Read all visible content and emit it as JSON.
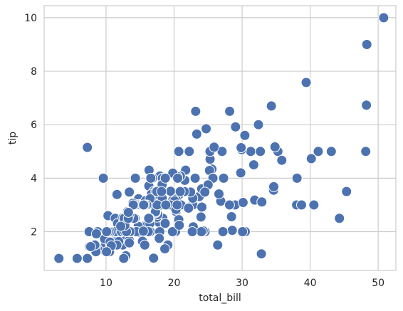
{
  "chart_data": {
    "type": "scatter",
    "xlabel": "total_bill",
    "ylabel": "tip",
    "color": "#4c72b0",
    "grid": true,
    "xlim": [
      0.9,
      52.6
    ],
    "xticks": [
      10,
      20,
      30,
      40,
      50
    ],
    "ylim": [
      0.55,
      10.45
    ],
    "yticks": [
      2,
      4,
      6,
      8,
      10
    ],
    "x": [
      16.99,
      10.34,
      21.01,
      23.68,
      24.59,
      25.29,
      8.77,
      26.88,
      15.04,
      14.78,
      10.27,
      35.26,
      15.42,
      18.43,
      14.83,
      21.58,
      10.33,
      16.29,
      16.97,
      20.65,
      17.92,
      20.29,
      15.77,
      39.42,
      19.82,
      17.81,
      13.37,
      12.69,
      21.7,
      19.65,
      9.55,
      18.35,
      15.06,
      20.69,
      17.78,
      24.06,
      16.31,
      16.93,
      18.69,
      31.27,
      16.04,
      17.46,
      13.94,
      9.68,
      30.4,
      18.29,
      22.23,
      32.4,
      28.55,
      18.04,
      12.54,
      10.29,
      34.81,
      9.94,
      25.56,
      19.49,
      38.01,
      26.41,
      11.24,
      48.27,
      20.29,
      13.81,
      11.02,
      18.29,
      17.59,
      20.08,
      16.45,
      3.07,
      20.23,
      15.01,
      12.02,
      17.07,
      26.86,
      25.28,
      14.73,
      10.51,
      17.92,
      27.2,
      22.76,
      17.29,
      19.44,
      16.66,
      10.07,
      32.68,
      15.98,
      34.83,
      13.03,
      18.28,
      24.71,
      21.16,
      28.97,
      22.49,
      5.75,
      16.32,
      22.75,
      40.17,
      27.28,
      12.03,
      21.01,
      12.46,
      11.35,
      15.38,
      44.3,
      22.42,
      20.92,
      15.36,
      20.49,
      25.21,
      18.24,
      14.31,
      14.0,
      7.25,
      38.07,
      23.95,
      25.71,
      17.31,
      29.93,
      10.65,
      12.43,
      24.08,
      11.69,
      13.42,
      14.26,
      15.95,
      12.48,
      29.8,
      8.52,
      14.52,
      11.38,
      22.82,
      19.08,
      20.27,
      11.17,
      12.26,
      18.26,
      8.51,
      10.33,
      14.15,
      16.0,
      13.16,
      17.47,
      34.3,
      41.19,
      27.05,
      16.43,
      8.35,
      18.64,
      11.87,
      9.78,
      7.51,
      14.07,
      13.13,
      17.26,
      24.55,
      19.77,
      29.85,
      48.17,
      25.0,
      13.39,
      16.49,
      21.5,
      12.66,
      16.21,
      13.81,
      17.51,
      24.52,
      20.76,
      31.71,
      10.59,
      10.63,
      50.81,
      15.81,
      7.25,
      31.85,
      16.82,
      32.9,
      17.89,
      14.48,
      9.6,
      34.63,
      34.65,
      23.33,
      45.35,
      23.17,
      40.55,
      20.69,
      20.9,
      30.46,
      18.15,
      23.1,
      15.69,
      19.81,
      28.44,
      15.48,
      16.58,
      7.56,
      10.34,
      43.11,
      13.0,
      13.51,
      18.71,
      12.74,
      13.0,
      16.4,
      20.53,
      16.47,
      26.59,
      38.73,
      24.27,
      12.76,
      30.06,
      25.89,
      48.33,
      13.27,
      28.17,
      12.9,
      28.15,
      11.59,
      7.74,
      30.14,
      12.16,
      13.42,
      8.58,
      15.98,
      13.42,
      16.27,
      10.09,
      20.45,
      13.28,
      22.12,
      24.01,
      15.69,
      11.61,
      10.77,
      15.53,
      10.07,
      12.6,
      32.83,
      35.83,
      29.03,
      27.18,
      22.67,
      17.82,
      18.78
    ],
    "values": [
      1.01,
      1.66,
      3.5,
      3.31,
      3.61,
      4.71,
      2.0,
      3.12,
      1.96,
      3.23,
      1.71,
      5.0,
      1.57,
      3.0,
      3.02,
      3.92,
      1.67,
      3.71,
      3.5,
      3.35,
      4.08,
      2.75,
      2.23,
      7.58,
      3.18,
      2.34,
      2.0,
      2.0,
      4.3,
      3.0,
      1.45,
      2.5,
      3.0,
      2.45,
      3.27,
      3.6,
      2.0,
      3.07,
      2.31,
      5.0,
      2.24,
      2.54,
      3.06,
      1.32,
      5.6,
      3.0,
      5.0,
      6.0,
      2.05,
      3.0,
      2.5,
      2.6,
      5.2,
      1.56,
      4.34,
      3.51,
      3.0,
      1.5,
      1.76,
      6.73,
      3.21,
      2.0,
      1.98,
      3.76,
      2.64,
      3.15,
      2.47,
      1.0,
      2.01,
      2.09,
      1.97,
      3.0,
      3.14,
      5.0,
      2.2,
      1.25,
      3.08,
      4.0,
      3.0,
      2.71,
      3.0,
      3.4,
      1.83,
      5.0,
      2.03,
      5.17,
      2.0,
      4.0,
      5.85,
      3.0,
      3.0,
      3.5,
      1.0,
      4.3,
      3.25,
      4.73,
      4.0,
      1.5,
      3.0,
      1.5,
      2.5,
      3.0,
      2.5,
      3.48,
      4.08,
      1.64,
      4.06,
      4.29,
      3.76,
      4.0,
      3.0,
      1.0,
      4.0,
      2.55,
      4.0,
      3.5,
      5.07,
      1.5,
      1.8,
      2.92,
      2.31,
      1.68,
      2.5,
      2.0,
      2.52,
      4.2,
      1.48,
      2.0,
      2.0,
      2.18,
      1.5,
      2.83,
      1.5,
      2.0,
      3.25,
      1.25,
      2.0,
      2.0,
      2.0,
      2.75,
      3.5,
      6.7,
      5.0,
      5.0,
      2.3,
      1.5,
      1.36,
      1.63,
      1.73,
      2.0,
      2.5,
      2.0,
      2.74,
      2.0,
      2.0,
      5.14,
      5.0,
      3.75,
      2.61,
      2.0,
      3.5,
      2.5,
      2.0,
      2.0,
      3.0,
      3.48,
      2.24,
      4.5,
      1.61,
      2.0,
      10.0,
      3.16,
      5.15,
      3.18,
      4.0,
      3.11,
      2.0,
      2.0,
      4.0,
      3.55,
      3.68,
      5.65,
      3.5,
      6.5,
      3.0,
      5.0,
      3.5,
      2.0,
      3.5,
      4.0,
      1.5,
      4.19,
      2.56,
      2.02,
      4.0,
      1.44,
      2.0,
      5.0,
      2.0,
      2.0,
      4.0,
      2.01,
      2.0,
      2.5,
      4.0,
      3.23,
      3.41,
      3.0,
      2.03,
      2.23,
      2.0,
      5.16,
      9.0,
      2.5,
      6.5,
      1.1,
      3.0,
      1.5,
      1.44,
      3.09,
      2.2,
      3.48,
      1.92,
      3.0,
      1.58,
      2.5,
      2.0,
      3.0,
      2.72,
      2.88,
      2.0,
      3.0,
      3.39,
      1.47,
      3.0,
      1.25,
      1.0,
      1.17,
      4.67,
      5.92,
      2.0,
      2.0,
      1.75,
      3.0
    ]
  }
}
